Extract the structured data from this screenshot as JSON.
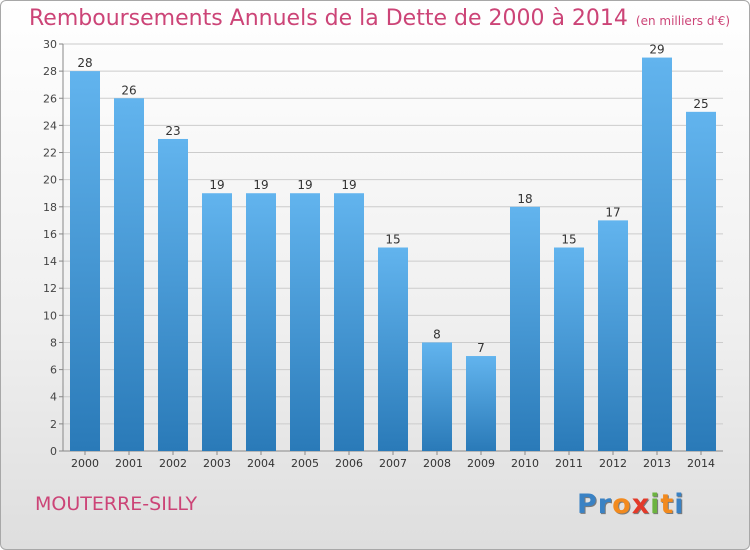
{
  "header": {
    "title": "Remboursements Annuels de la Dette de 2000 à 2014",
    "subtitle": "(en milliers d'€)"
  },
  "footer": {
    "commune": "MOUTERRE-SILLY",
    "logo": {
      "letters": [
        "P",
        "r",
        "o",
        "x",
        "i",
        "t",
        "i"
      ],
      "colors": [
        "#3a82c4",
        "#3a82c4",
        "#f28a1e",
        "#e33a2a",
        "#6cb33f",
        "#f28a1e",
        "#3a82c4"
      ]
    }
  },
  "colors": {
    "bar_light": "#62b4ee",
    "bar_dark": "#2a7ab8",
    "title": "#cc4477",
    "grid": "#cccccc"
  },
  "chart_data": {
    "type": "bar",
    "categories": [
      "2000",
      "2001",
      "2002",
      "2003",
      "2004",
      "2005",
      "2006",
      "2007",
      "2008",
      "2009",
      "2010",
      "2011",
      "2012",
      "2013",
      "2014"
    ],
    "values": [
      28,
      26,
      23,
      19,
      19,
      19,
      19,
      15,
      8,
      7,
      18,
      15,
      17,
      29,
      25
    ],
    "title": "Remboursements Annuels de la Dette de 2000 à 2014",
    "subtitle": "(en milliers d'€)",
    "ylim": [
      0,
      30
    ],
    "yticks": [
      0,
      2,
      4,
      6,
      8,
      10,
      12,
      14,
      16,
      18,
      20,
      22,
      24,
      26,
      28,
      30
    ],
    "grid": true,
    "data_labels": true
  }
}
